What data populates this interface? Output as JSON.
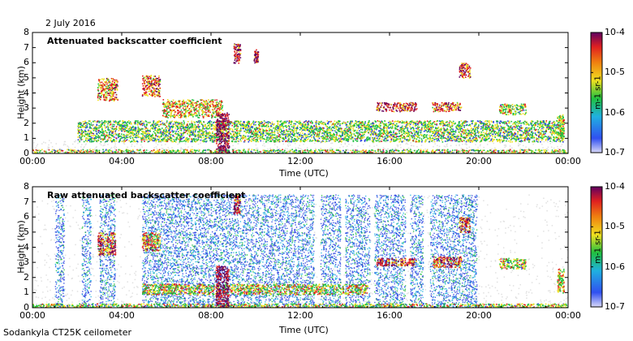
{
  "header": {
    "date": "2 July 2016"
  },
  "footer": {
    "instrument": "Sodankyla CT25K ceilometer"
  },
  "colors": {
    "background_gray": "#c8c8c8",
    "low_blue": "#2840e0",
    "green": "#20c040",
    "yellow": "#f0e020",
    "red": "#e02020",
    "max_purple": "#600060"
  },
  "chart_data": [
    {
      "type": "heatmap",
      "title": "Attenuated backscatter coefficient",
      "xlabel": "Time (UTC)",
      "ylabel": "Height (km)",
      "xlim": [
        0,
        24
      ],
      "ylim": [
        0,
        8
      ],
      "x_ticks": [
        "00:00",
        "04:00",
        "08:00",
        "12:00",
        "16:00",
        "20:00",
        "00:00"
      ],
      "y_ticks": [
        "0",
        "1",
        "2",
        "3",
        "4",
        "5",
        "6",
        "7",
        "8"
      ],
      "colorbar": {
        "label": "m-1 sr-1",
        "scale": "log",
        "ticks": [
          "10-7",
          "10-6",
          "10-5",
          "10-4"
        ]
      },
      "features": [
        {
          "name": "surface layer",
          "t_start": 0.0,
          "t_end": 24.0,
          "h_bottom": 0.0,
          "h_top": 0.3,
          "intensity": 0.55
        },
        {
          "name": "lower cloud band",
          "t_start": 2.0,
          "t_end": 23.8,
          "h_bottom": 0.8,
          "h_top": 2.2,
          "intensity": 0.5
        },
        {
          "name": "cloud 03:00",
          "t_start": 2.9,
          "t_end": 3.8,
          "h_bottom": 3.5,
          "h_top": 5.0,
          "intensity": 0.7
        },
        {
          "name": "cloud 05:00",
          "t_start": 4.9,
          "t_end": 5.7,
          "h_bottom": 3.8,
          "h_top": 5.2,
          "intensity": 0.75
        },
        {
          "name": "layer 06:00",
          "t_start": 5.8,
          "t_end": 8.5,
          "h_bottom": 2.4,
          "h_top": 3.6,
          "intensity": 0.65
        },
        {
          "name": "precipitation 08:30",
          "t_start": 8.2,
          "t_end": 8.8,
          "h_bottom": 0.0,
          "h_top": 2.8,
          "intensity": 0.95
        },
        {
          "name": "high cloud 09:00",
          "t_start": 9.0,
          "t_end": 9.3,
          "h_bottom": 6.0,
          "h_top": 7.3,
          "intensity": 0.9
        },
        {
          "name": "high cloud 10:00",
          "t_start": 9.9,
          "t_end": 10.1,
          "h_bottom": 6.0,
          "h_top": 6.9,
          "intensity": 0.85
        },
        {
          "name": "layer 16:00",
          "t_start": 15.4,
          "t_end": 17.2,
          "h_bottom": 2.8,
          "h_top": 3.4,
          "intensity": 0.8
        },
        {
          "name": "layer 18:00",
          "t_start": 17.9,
          "t_end": 19.2,
          "h_bottom": 2.8,
          "h_top": 3.4,
          "intensity": 0.75
        },
        {
          "name": "cloud 19:30",
          "t_start": 19.1,
          "t_end": 19.6,
          "h_bottom": 5.0,
          "h_top": 6.0,
          "intensity": 0.8
        },
        {
          "name": "layer 21:00",
          "t_start": 20.9,
          "t_end": 22.1,
          "h_bottom": 2.6,
          "h_top": 3.3,
          "intensity": 0.55
        },
        {
          "name": "cloud 23:30",
          "t_start": 23.5,
          "t_end": 23.8,
          "h_bottom": 1.0,
          "h_top": 2.6,
          "intensity": 0.6
        }
      ]
    },
    {
      "type": "heatmap",
      "title": "Raw attenuated backscatter coefficient",
      "xlabel": "Time (UTC)",
      "ylabel": "Height (km)",
      "xlim": [
        0,
        24
      ],
      "ylim": [
        0,
        8
      ],
      "x_ticks": [
        "00:00",
        "04:00",
        "08:00",
        "12:00",
        "16:00",
        "20:00",
        "00:00"
      ],
      "y_ticks": [
        "0",
        "1",
        "2",
        "3",
        "4",
        "5",
        "6",
        "7",
        "8"
      ],
      "colorbar": {
        "label": "m-1 sr-1",
        "scale": "log",
        "ticks": [
          "10-7",
          "10-6",
          "10-5",
          "10-4"
        ]
      },
      "noise_bands": [
        {
          "t_start": 1.0,
          "t_end": 1.4,
          "h_top": 7.5
        },
        {
          "t_start": 2.2,
          "t_end": 2.6,
          "h_top": 7.5
        },
        {
          "t_start": 3.0,
          "t_end": 3.7,
          "h_top": 7.5
        },
        {
          "t_start": 4.9,
          "t_end": 12.6,
          "h_top": 7.5
        },
        {
          "t_start": 12.9,
          "t_end": 13.8,
          "h_top": 7.5
        },
        {
          "t_start": 14.0,
          "t_end": 15.1,
          "h_top": 7.5
        },
        {
          "t_start": 15.3,
          "t_end": 16.7,
          "h_top": 7.5
        },
        {
          "t_start": 16.9,
          "t_end": 17.5,
          "h_top": 7.5
        },
        {
          "t_start": 17.8,
          "t_end": 19.9,
          "h_top": 7.5
        }
      ],
      "features": [
        {
          "name": "surface layer",
          "t_start": 0.0,
          "t_end": 24.0,
          "h_bottom": 0.0,
          "h_top": 0.3,
          "intensity": 0.55
        },
        {
          "name": "lower cloud band",
          "t_start": 4.9,
          "t_end": 15.0,
          "h_bottom": 0.9,
          "h_top": 1.6,
          "intensity": 0.6
        },
        {
          "name": "cloud 03:00",
          "t_start": 2.9,
          "t_end": 3.7,
          "h_bottom": 3.5,
          "h_top": 5.0,
          "intensity": 0.75
        },
        {
          "name": "cloud 05:00",
          "t_start": 4.9,
          "t_end": 5.7,
          "h_bottom": 3.8,
          "h_top": 5.0,
          "intensity": 0.7
        },
        {
          "name": "precipitation 08:30",
          "t_start": 8.2,
          "t_end": 8.8,
          "h_bottom": 0.0,
          "h_top": 2.8,
          "intensity": 0.95
        },
        {
          "name": "high cloud 09:00",
          "t_start": 9.0,
          "t_end": 9.3,
          "h_bottom": 6.2,
          "h_top": 7.5,
          "intensity": 0.85
        },
        {
          "name": "layer 16:00",
          "t_start": 15.4,
          "t_end": 17.2,
          "h_bottom": 2.8,
          "h_top": 3.3,
          "intensity": 0.8
        },
        {
          "name": "layer 18:00",
          "t_start": 17.9,
          "t_end": 19.2,
          "h_bottom": 2.7,
          "h_top": 3.4,
          "intensity": 0.75
        },
        {
          "name": "cloud 19:30",
          "t_start": 19.1,
          "t_end": 19.6,
          "h_bottom": 5.0,
          "h_top": 6.0,
          "intensity": 0.8
        },
        {
          "name": "layer 21:00",
          "t_start": 20.9,
          "t_end": 22.1,
          "h_bottom": 2.6,
          "h_top": 3.3,
          "intensity": 0.55
        },
        {
          "name": "cloud 23:30",
          "t_start": 23.5,
          "t_end": 23.8,
          "h_bottom": 1.0,
          "h_top": 2.6,
          "intensity": 0.6
        }
      ]
    }
  ]
}
